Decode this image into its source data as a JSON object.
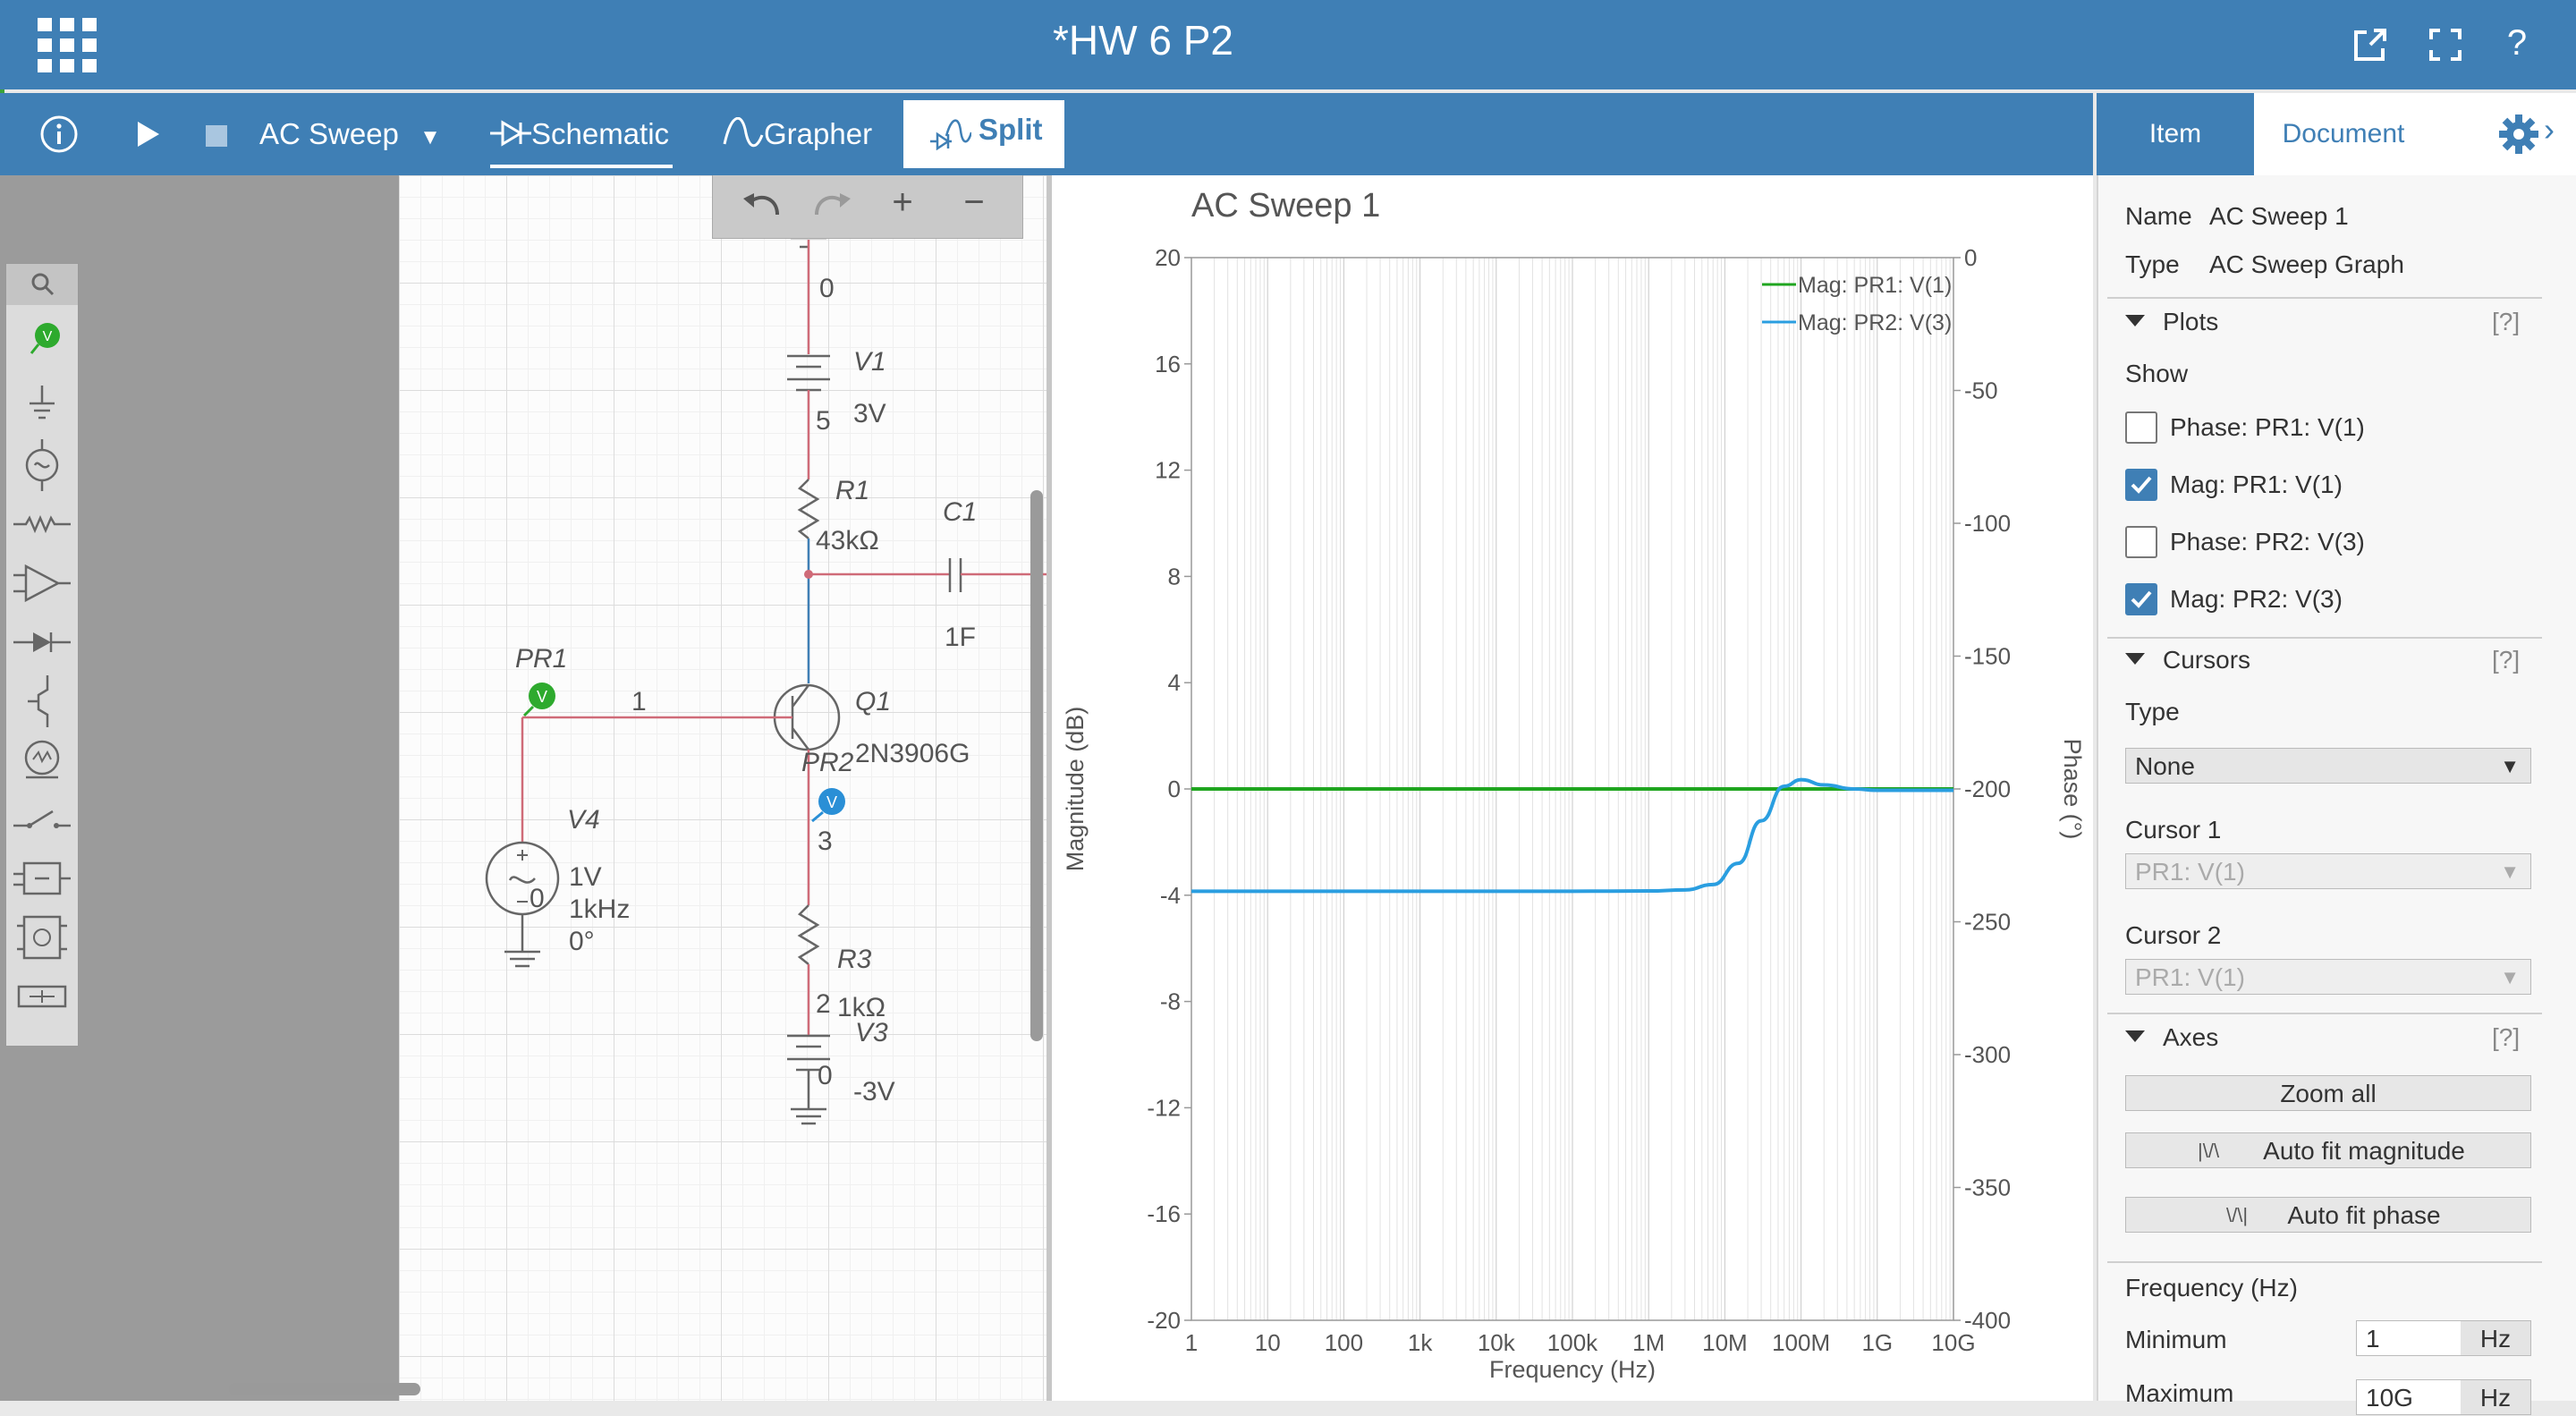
{
  "window": {
    "title": "*HW 6 P2",
    "title_icons": [
      "popout-icon",
      "fullscreen-icon",
      "help-icon"
    ],
    "help_label": "?"
  },
  "toolbar": {
    "sim_type": "AC Sweep",
    "schematic_label": "Schematic",
    "grapher_label": "Grapher",
    "split_label": "Split"
  },
  "right_tabs": {
    "item": "Item",
    "document": "Document"
  },
  "schematic": {
    "labels": {
      "node0_top": "0",
      "v1_name": "V1",
      "v1_node": "5",
      "v1_value": "3V",
      "r1_name": "R1",
      "r1_value": "43kΩ",
      "c1_name": "C1",
      "c1_value": "1F",
      "pr1_name": "PR1",
      "node1": "1",
      "q1_name": "Q1",
      "q1_model": "2N3906G",
      "pr2_name": "PR2",
      "node3": "3",
      "v4_name": "V4",
      "v4_node": "0",
      "v4_amp": "1V",
      "v4_freq": "1kHz",
      "v4_phase": "0°",
      "r3_name": "R3",
      "r3_node": "2",
      "r3_value": "1kΩ",
      "v3_name": "V3",
      "v3_node": "0",
      "v3_value": "-3V",
      "probe_glyph": "V"
    },
    "colors": {
      "wire": "#cf6b78",
      "wire_selected": "#3f7fb5",
      "probe1": "#2eaa2e",
      "probe2": "#2a8fd6"
    }
  },
  "chart_data": {
    "type": "line",
    "title": "AC Sweep 1",
    "xlabel": "Frequency (Hz)",
    "ylabel": "Magnitude (dB)",
    "y2label": "Phase (°)",
    "xscale": "log",
    "xlim": [
      1,
      10000000000
    ],
    "ylim": [
      -20,
      20
    ],
    "y2lim": [
      -400,
      0
    ],
    "xticks": [
      1,
      10,
      100,
      1000,
      10000,
      100000,
      1000000,
      10000000,
      100000000,
      1000000000,
      10000000000
    ],
    "xtick_labels": [
      "1",
      "10",
      "100",
      "1k",
      "10k",
      "100k",
      "1M",
      "10M",
      "100M",
      "1G",
      "10G"
    ],
    "yticks": [
      20,
      16,
      12,
      8,
      4,
      0,
      -4,
      -8,
      -12,
      -16,
      -20
    ],
    "ytick_labels": [
      "20",
      "16",
      "12",
      "8",
      "4",
      "0",
      "-4",
      "-8",
      "-12",
      "-16",
      "-20"
    ],
    "y2ticks": [
      0,
      -50,
      -100,
      -150,
      -200,
      -250,
      -300,
      -350,
      -400
    ],
    "y2tick_labels": [
      "0",
      "-50",
      "-100",
      "-150",
      "-200",
      "-250",
      "-300",
      "-350",
      "-400"
    ],
    "legend_position": "top-right",
    "series": [
      {
        "name": "Mag: PR1: V(1)",
        "color": "#1fa51f",
        "x": [
          1,
          10000000000
        ],
        "y": [
          0,
          0
        ]
      },
      {
        "name": "Mag: PR2: V(3)",
        "color": "#2a9ee0",
        "x": [
          1,
          100000,
          1000000,
          3000000,
          7000000,
          15000000,
          30000000,
          60000000,
          100000000,
          200000000,
          500000000,
          1000000000,
          10000000000
        ],
        "y": [
          -3.85,
          -3.85,
          -3.84,
          -3.8,
          -3.6,
          -2.8,
          -1.2,
          0.1,
          0.35,
          0.15,
          0.0,
          -0.05,
          -0.05
        ]
      }
    ]
  },
  "properties": {
    "name_label": "Name",
    "name_value": "AC Sweep 1",
    "type_label": "Type",
    "type_value": "AC Sweep Graph",
    "plots_title": "Plots",
    "help": "[?]",
    "show_label": "Show",
    "plots": [
      {
        "label": "Phase: PR1: V(1)",
        "checked": false
      },
      {
        "label": "Mag: PR1: V(1)",
        "checked": true
      },
      {
        "label": "Phase: PR2: V(3)",
        "checked": false
      },
      {
        "label": "Mag: PR2: V(3)",
        "checked": true
      }
    ],
    "cursors_title": "Cursors",
    "cursor_type_label": "Type",
    "cursor_type_value": "None",
    "cursor1_label": "Cursor 1",
    "cursor1_value": "PR1: V(1)",
    "cursor2_label": "Cursor 2",
    "cursor2_value": "PR1: V(1)",
    "axes_title": "Axes",
    "zoom_all": "Zoom all",
    "auto_fit_magnitude": "Auto fit magnitude",
    "auto_fit_phase": "Auto fit phase",
    "frequency_label": "Frequency (Hz)",
    "minimum_label": "Minimum",
    "minimum_value": "1",
    "minimum_unit": "Hz",
    "maximum_label": "Maximum",
    "maximum_value": "10G",
    "maximum_unit": "Hz"
  }
}
